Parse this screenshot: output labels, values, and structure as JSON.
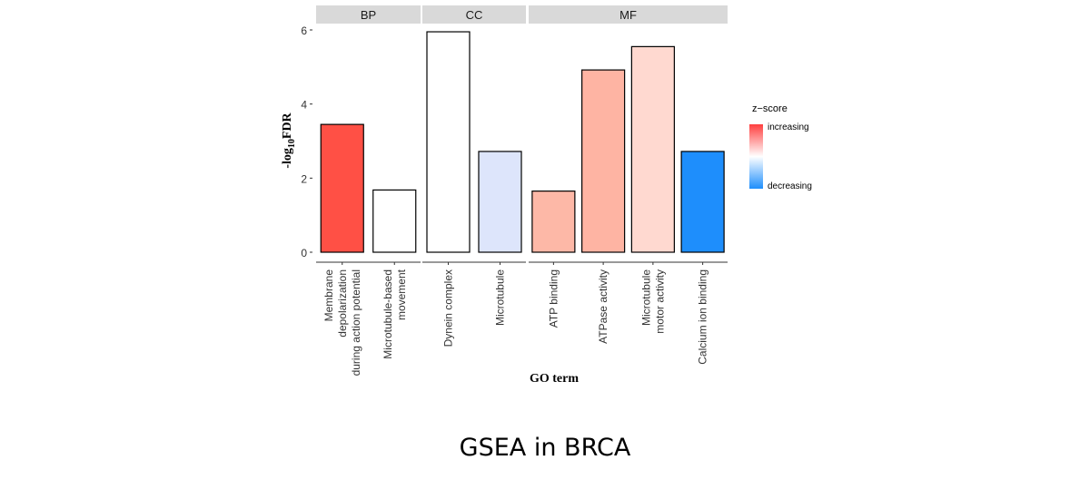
{
  "chart_data": {
    "type": "bar",
    "ylabel": "-log10FDR",
    "xlabel": "GO term",
    "ylim": [
      0,
      6.2
    ],
    "yticks": [
      "0",
      "2",
      "4",
      "6"
    ],
    "grid": false,
    "facets": [
      {
        "name": "BP",
        "categories": [
          "Membrane\ndepolarization\nduring action potential",
          "Microtubule-based\nmovement"
        ],
        "values": [
          3.45,
          1.68
        ],
        "zscore_color": [
          "#ff5045",
          "#ffffff"
        ]
      },
      {
        "name": "CC",
        "categories": [
          "Dynein complex",
          "Microtubule"
        ],
        "values": [
          5.95,
          2.72
        ],
        "zscore_color": [
          "#ffffff",
          "#dde5fb"
        ]
      },
      {
        "name": "MF",
        "categories": [
          "ATP binding",
          "ATPase activity",
          "Microtubule\nmotor activity",
          "Calcium ion binding"
        ],
        "values": [
          1.65,
          4.92,
          5.55,
          2.72
        ],
        "zscore_color": [
          "#fdb8a7",
          "#feb4a3",
          "#ffd9d0",
          "#1e8efc"
        ]
      }
    ],
    "legend": {
      "title": "z−score",
      "labels": [
        "increasing",
        "decreasing"
      ],
      "colors": [
        "#ff3f3f",
        "#ffffff",
        "#1e8efc"
      ],
      "placement": "right"
    }
  },
  "caption": "GSEA in BRCA"
}
